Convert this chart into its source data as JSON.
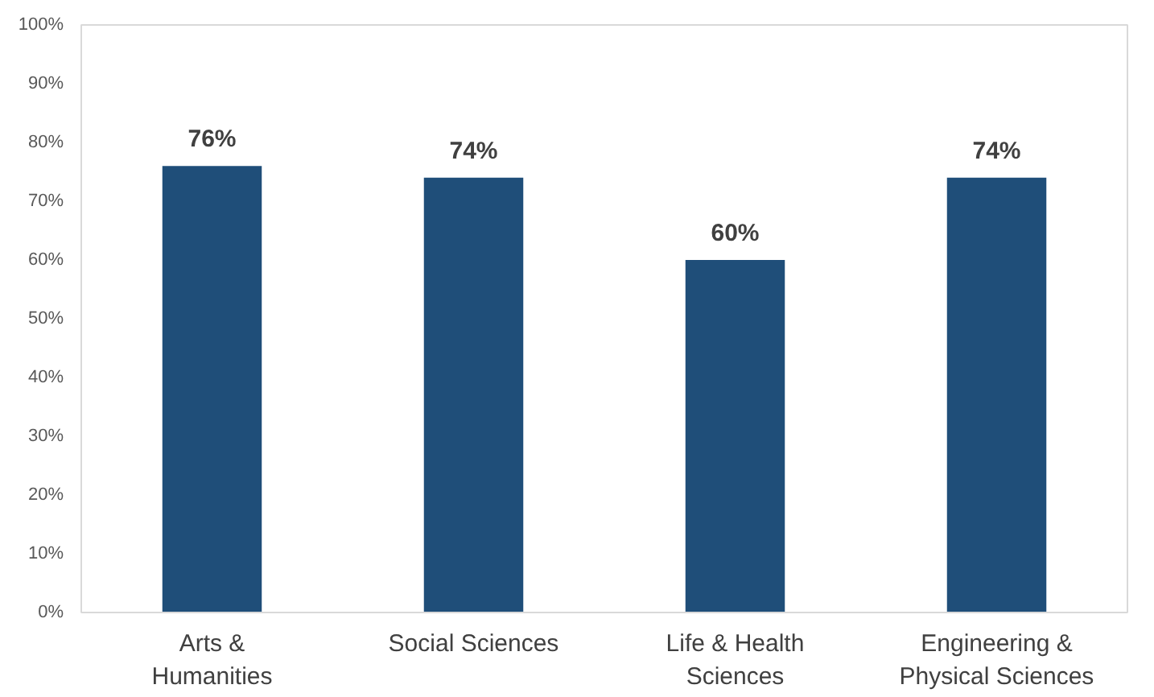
{
  "chart_data": {
    "type": "bar",
    "categories": [
      "Arts & Humanities",
      "Social Sciences",
      "Life & Health Sciences",
      "Engineering & Physical Sciences"
    ],
    "values": [
      76,
      74,
      60,
      74
    ],
    "value_labels": [
      "76%",
      "74%",
      "60%",
      "74%"
    ],
    "color": "#1f4e79",
    "ylim": [
      0,
      100
    ],
    "yticks": [
      {
        "value": 0,
        "label": "0%"
      },
      {
        "value": 10,
        "label": "10%"
      },
      {
        "value": 20,
        "label": "20%"
      },
      {
        "value": 30,
        "label": "30%"
      },
      {
        "value": 40,
        "label": "40%"
      },
      {
        "value": 50,
        "label": "50%"
      },
      {
        "value": 60,
        "label": "60%"
      },
      {
        "value": 70,
        "label": "70%"
      },
      {
        "value": 80,
        "label": "80%"
      },
      {
        "value": 90,
        "label": "90%"
      },
      {
        "value": 100,
        "label": "100%"
      }
    ],
    "grid": false
  }
}
